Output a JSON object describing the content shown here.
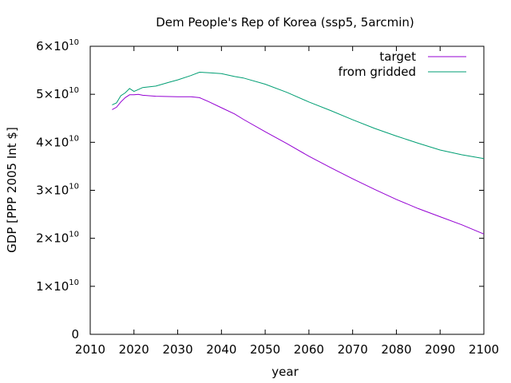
{
  "chart_data": {
    "type": "line",
    "title": "Dem People's Rep of Korea (ssp5, 5arcmin)",
    "xlabel": "year",
    "ylabel": "GDP [PPP 2005 Int $]",
    "xlim": [
      2010,
      2100
    ],
    "ylim": [
      0,
      60000000000
    ],
    "x_ticks": [
      2010,
      2020,
      2030,
      2040,
      2050,
      2060,
      2070,
      2080,
      2090,
      2100
    ],
    "y_ticks": [
      {
        "value": 0,
        "mantissa": "0",
        "exponent": ""
      },
      {
        "value": 10000000000,
        "mantissa": "1×10",
        "exponent": "10"
      },
      {
        "value": 20000000000,
        "mantissa": "2×10",
        "exponent": "10"
      },
      {
        "value": 30000000000,
        "mantissa": "3×10",
        "exponent": "10"
      },
      {
        "value": 40000000000,
        "mantissa": "4×10",
        "exponent": "10"
      },
      {
        "value": 50000000000,
        "mantissa": "5×10",
        "exponent": "10"
      },
      {
        "value": 60000000000,
        "mantissa": "6×10",
        "exponent": "10"
      }
    ],
    "grid": false,
    "legend_position": "top-right",
    "series": [
      {
        "name": "target",
        "color": "#9400d3",
        "points": [
          [
            2015,
            46800000000
          ],
          [
            2016,
            47300000000
          ],
          [
            2017,
            48400000000
          ],
          [
            2018,
            49300000000
          ],
          [
            2019,
            49900000000
          ],
          [
            2020,
            49900000000
          ],
          [
            2021,
            50000000000
          ],
          [
            2022,
            49800000000
          ],
          [
            2025,
            49600000000
          ],
          [
            2030,
            49500000000
          ],
          [
            2033,
            49500000000
          ],
          [
            2035,
            49300000000
          ],
          [
            2037,
            48500000000
          ],
          [
            2040,
            47200000000
          ],
          [
            2043,
            45900000000
          ],
          [
            2045,
            44800000000
          ],
          [
            2050,
            42200000000
          ],
          [
            2055,
            39700000000
          ],
          [
            2060,
            37100000000
          ],
          [
            2065,
            34700000000
          ],
          [
            2070,
            32400000000
          ],
          [
            2075,
            30200000000
          ],
          [
            2080,
            28100000000
          ],
          [
            2085,
            26200000000
          ],
          [
            2090,
            24500000000
          ],
          [
            2095,
            22800000000
          ],
          [
            2100,
            20900000000
          ]
        ]
      },
      {
        "name": "from gridded",
        "color": "#009e73",
        "points": [
          [
            2015,
            47800000000
          ],
          [
            2016,
            48200000000
          ],
          [
            2017,
            49700000000
          ],
          [
            2018,
            50300000000
          ],
          [
            2019,
            51200000000
          ],
          [
            2020,
            50600000000
          ],
          [
            2021,
            51000000000
          ],
          [
            2022,
            51400000000
          ],
          [
            2025,
            51700000000
          ],
          [
            2028,
            52500000000
          ],
          [
            2030,
            53000000000
          ],
          [
            2033,
            53900000000
          ],
          [
            2035,
            54600000000
          ],
          [
            2037,
            54500000000
          ],
          [
            2040,
            54300000000
          ],
          [
            2043,
            53700000000
          ],
          [
            2045,
            53400000000
          ],
          [
            2050,
            52100000000
          ],
          [
            2055,
            50400000000
          ],
          [
            2060,
            48400000000
          ],
          [
            2065,
            46600000000
          ],
          [
            2070,
            44700000000
          ],
          [
            2075,
            42900000000
          ],
          [
            2080,
            41300000000
          ],
          [
            2085,
            39800000000
          ],
          [
            2090,
            38400000000
          ],
          [
            2095,
            37400000000
          ],
          [
            2100,
            36600000000
          ]
        ]
      }
    ]
  }
}
